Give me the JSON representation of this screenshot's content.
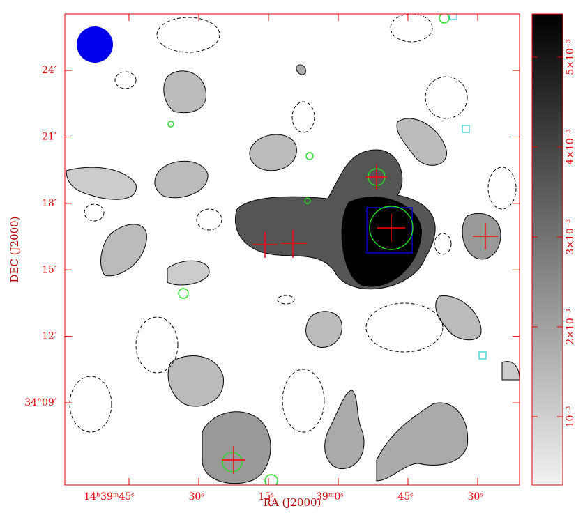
{
  "chart_data": {
    "type": "image",
    "x_label": "RA (J2000)",
    "y_label": "DEC (J2000)",
    "xlim": [
      118.8,
      21
    ],
    "ylim": [
      5.29,
      26.55
    ],
    "xticks": [
      {
        "value": 105,
        "label": "14ʰ39ᵐ45ˢ"
      },
      {
        "value": 90,
        "label": "30ˢ"
      },
      {
        "value": 75,
        "label": "15ˢ"
      },
      {
        "value": 60,
        "label": "39ᵐ0ˢ"
      },
      {
        "value": 45,
        "label": "45ˢ"
      },
      {
        "value": 30,
        "label": "30ˢ"
      }
    ],
    "yticks": [
      {
        "value": 9,
        "label": "34°09′"
      },
      {
        "value": 12,
        "label": "12′"
      },
      {
        "value": 15,
        "label": "15′"
      },
      {
        "value": 18,
        "label": "18′"
      },
      {
        "value": 21,
        "label": "21′"
      },
      {
        "value": 24,
        "label": "24′"
      }
    ],
    "colorbar": {
      "lim": [
        0.00024,
        0.00548
      ],
      "ticks": [
        {
          "value": 0.001,
          "label": "10⁻³"
        },
        {
          "value": 0.002,
          "label": "2×10⁻³"
        },
        {
          "value": 0.003,
          "label": "3×10⁻³"
        },
        {
          "value": 0.004,
          "label": "4×10⁻³"
        },
        {
          "value": 0.005,
          "label": "5×10⁻³"
        }
      ]
    }
  }
}
